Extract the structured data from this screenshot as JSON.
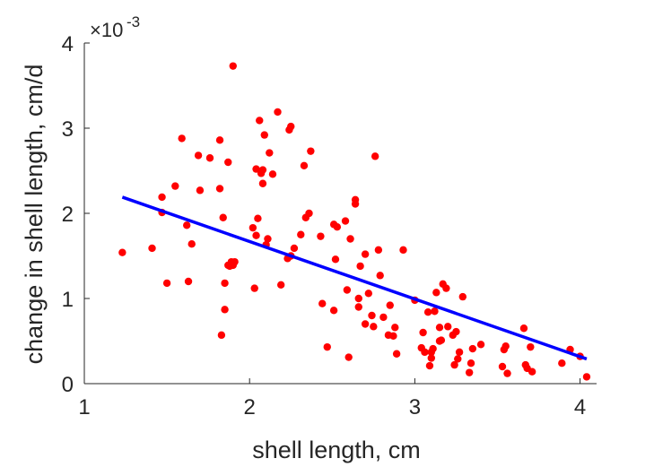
{
  "chart_data": {
    "type": "scatter",
    "xlabel": "shell length, cm",
    "ylabel": "change in shell length, cm/d",
    "y_multiplier": "×10",
    "y_exponent": "-3",
    "xlim": [
      1,
      4.1
    ],
    "ylim": [
      0,
      4
    ],
    "x_ticks": [
      1,
      2,
      3,
      4
    ],
    "y_ticks": [
      0,
      1,
      2,
      3,
      4
    ],
    "grid": false,
    "colors": {
      "points": "#ff0000",
      "fit_line": "#0000ff",
      "axes": "#262626"
    },
    "series": [
      {
        "type": "scatter",
        "x": [
          1.23,
          1.41,
          1.47,
          1.47,
          1.5,
          1.55,
          1.59,
          1.62,
          1.63,
          1.65,
          1.69,
          1.7,
          1.76,
          1.82,
          1.82,
          1.83,
          1.84,
          1.85,
          1.85,
          1.87,
          1.87,
          1.88,
          1.89,
          1.9,
          1.9,
          1.91,
          2.02,
          2.03,
          2.04,
          2.04,
          2.05,
          2.06,
          2.07,
          2.08,
          2.08,
          2.09,
          2.1,
          2.11,
          2.12,
          2.14,
          2.17,
          2.19,
          2.23,
          2.24,
          2.25,
          2.25,
          2.27,
          2.31,
          2.33,
          2.34,
          2.36,
          2.37,
          2.43,
          2.44,
          2.47,
          2.51,
          2.51,
          2.52,
          2.53,
          2.58,
          2.59,
          2.6,
          2.61,
          2.64,
          2.64,
          2.66,
          2.66,
          2.67,
          2.7,
          2.7,
          2.72,
          2.74,
          2.75,
          2.76,
          2.78,
          2.79,
          2.81,
          2.84,
          2.85,
          2.87,
          2.88,
          2.89,
          2.93,
          3.0,
          3.04,
          3.05,
          3.06,
          3.08,
          3.09,
          3.1,
          3.1,
          3.11,
          3.12,
          3.13,
          3.15,
          3.15,
          3.16,
          3.17,
          3.19,
          3.2,
          3.23,
          3.24,
          3.25,
          3.26,
          3.27,
          3.29,
          3.33,
          3.34,
          3.35,
          3.4,
          3.53,
          3.54,
          3.55,
          3.56,
          3.66,
          3.67,
          3.68,
          3.7,
          3.71,
          3.89,
          3.94,
          4.0,
          4.04
        ],
        "y": [
          1.54,
          1.59,
          2.19,
          2.01,
          1.18,
          2.32,
          2.88,
          1.86,
          1.2,
          1.64,
          2.68,
          2.27,
          2.65,
          2.86,
          2.29,
          0.57,
          1.95,
          0.87,
          1.18,
          2.6,
          1.39,
          1.38,
          1.43,
          3.73,
          1.39,
          1.43,
          1.83,
          1.12,
          2.52,
          1.74,
          1.94,
          3.09,
          2.47,
          2.51,
          2.35,
          2.92,
          1.63,
          1.7,
          2.71,
          2.46,
          3.19,
          1.16,
          1.47,
          2.98,
          3.02,
          1.5,
          1.59,
          1.75,
          2.56,
          1.95,
          2.0,
          2.73,
          1.73,
          0.94,
          0.43,
          1.87,
          0.86,
          1.46,
          1.84,
          1.91,
          1.1,
          0.31,
          1.7,
          2.11,
          2.16,
          1.0,
          0.9,
          1.38,
          1.52,
          0.7,
          1.06,
          0.8,
          0.67,
          2.67,
          1.57,
          1.27,
          0.78,
          0.57,
          0.92,
          0.56,
          0.66,
          0.35,
          1.57,
          0.98,
          0.42,
          0.6,
          0.37,
          0.84,
          0.21,
          0.3,
          0.37,
          0.41,
          0.85,
          1.07,
          0.66,
          0.5,
          0.51,
          1.17,
          1.12,
          0.67,
          0.57,
          0.22,
          0.61,
          0.29,
          0.37,
          1.02,
          0.13,
          0.24,
          0.41,
          0.46,
          0.2,
          0.4,
          0.44,
          0.12,
          0.65,
          0.22,
          0.18,
          0.43,
          0.14,
          0.24,
          0.4,
          0.32,
          0.08
        ]
      },
      {
        "type": "line",
        "x": [
          1.23,
          4.04
        ],
        "y": [
          2.19,
          0.29
        ]
      }
    ]
  }
}
